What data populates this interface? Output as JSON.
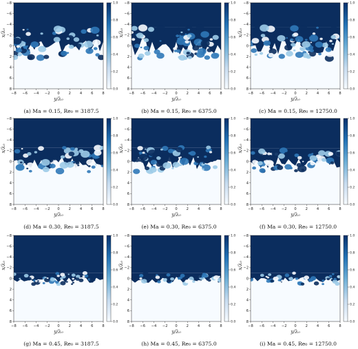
{
  "figure": {
    "x_ticks": [
      "−8",
      "−6",
      "−4",
      "−2",
      "0",
      "2",
      "4",
      "6",
      "8"
    ],
    "y_ticks": [
      "−8",
      "−6",
      "−4",
      "−2",
      "0",
      "2",
      "4",
      "6",
      "8"
    ],
    "x_label": "y/λ₀",
    "y_label": "x/λ₀",
    "colorbar_ticks": [
      "0.0",
      "0.2",
      "0.4",
      "0.6",
      "0.8",
      "1.0"
    ],
    "colors": {
      "dark": "#0b2d5e",
      "mid": "#2f78b8",
      "light": "#9ccbe8",
      "white": "#f7fbff"
    },
    "panels": [
      {
        "caption": "(a) Ma = 0.15, Re₀ = 3187.5",
        "interface_level": 0.5,
        "mixing_width": 3.2
      },
      {
        "caption": "(b) Ma = 0.15, Re₀ = 6375.0",
        "interface_level": 0.5,
        "mixing_width": 3.4
      },
      {
        "caption": "(c) Ma = 0.15, Re₀ = 12750.0",
        "interface_level": 0.5,
        "mixing_width": 3.4
      },
      {
        "caption": "(d) Ma = 0.30, Re₀ = 3187.5",
        "interface_level": 0.5,
        "mixing_width": 2.6
      },
      {
        "caption": "(e) Ma = 0.30, Re₀ = 6375.0",
        "interface_level": 0.5,
        "mixing_width": 2.6
      },
      {
        "caption": "(f) Ma = 0.30, Re₀ = 12750.0",
        "interface_level": 0.5,
        "mixing_width": 2.4
      },
      {
        "caption": "(g) Ma = 0.45, Re₀ = 3187.5",
        "interface_level": 0.5,
        "mixing_width": 1.0
      },
      {
        "caption": "(h) Ma = 0.45, Re₀ = 6375.0",
        "interface_level": 0.5,
        "mixing_width": 1.0
      },
      {
        "caption": "(i) Ma = 0.45, Re₀ = 12750.0",
        "interface_level": 0.5,
        "mixing_width": 1.0
      }
    ]
  }
}
